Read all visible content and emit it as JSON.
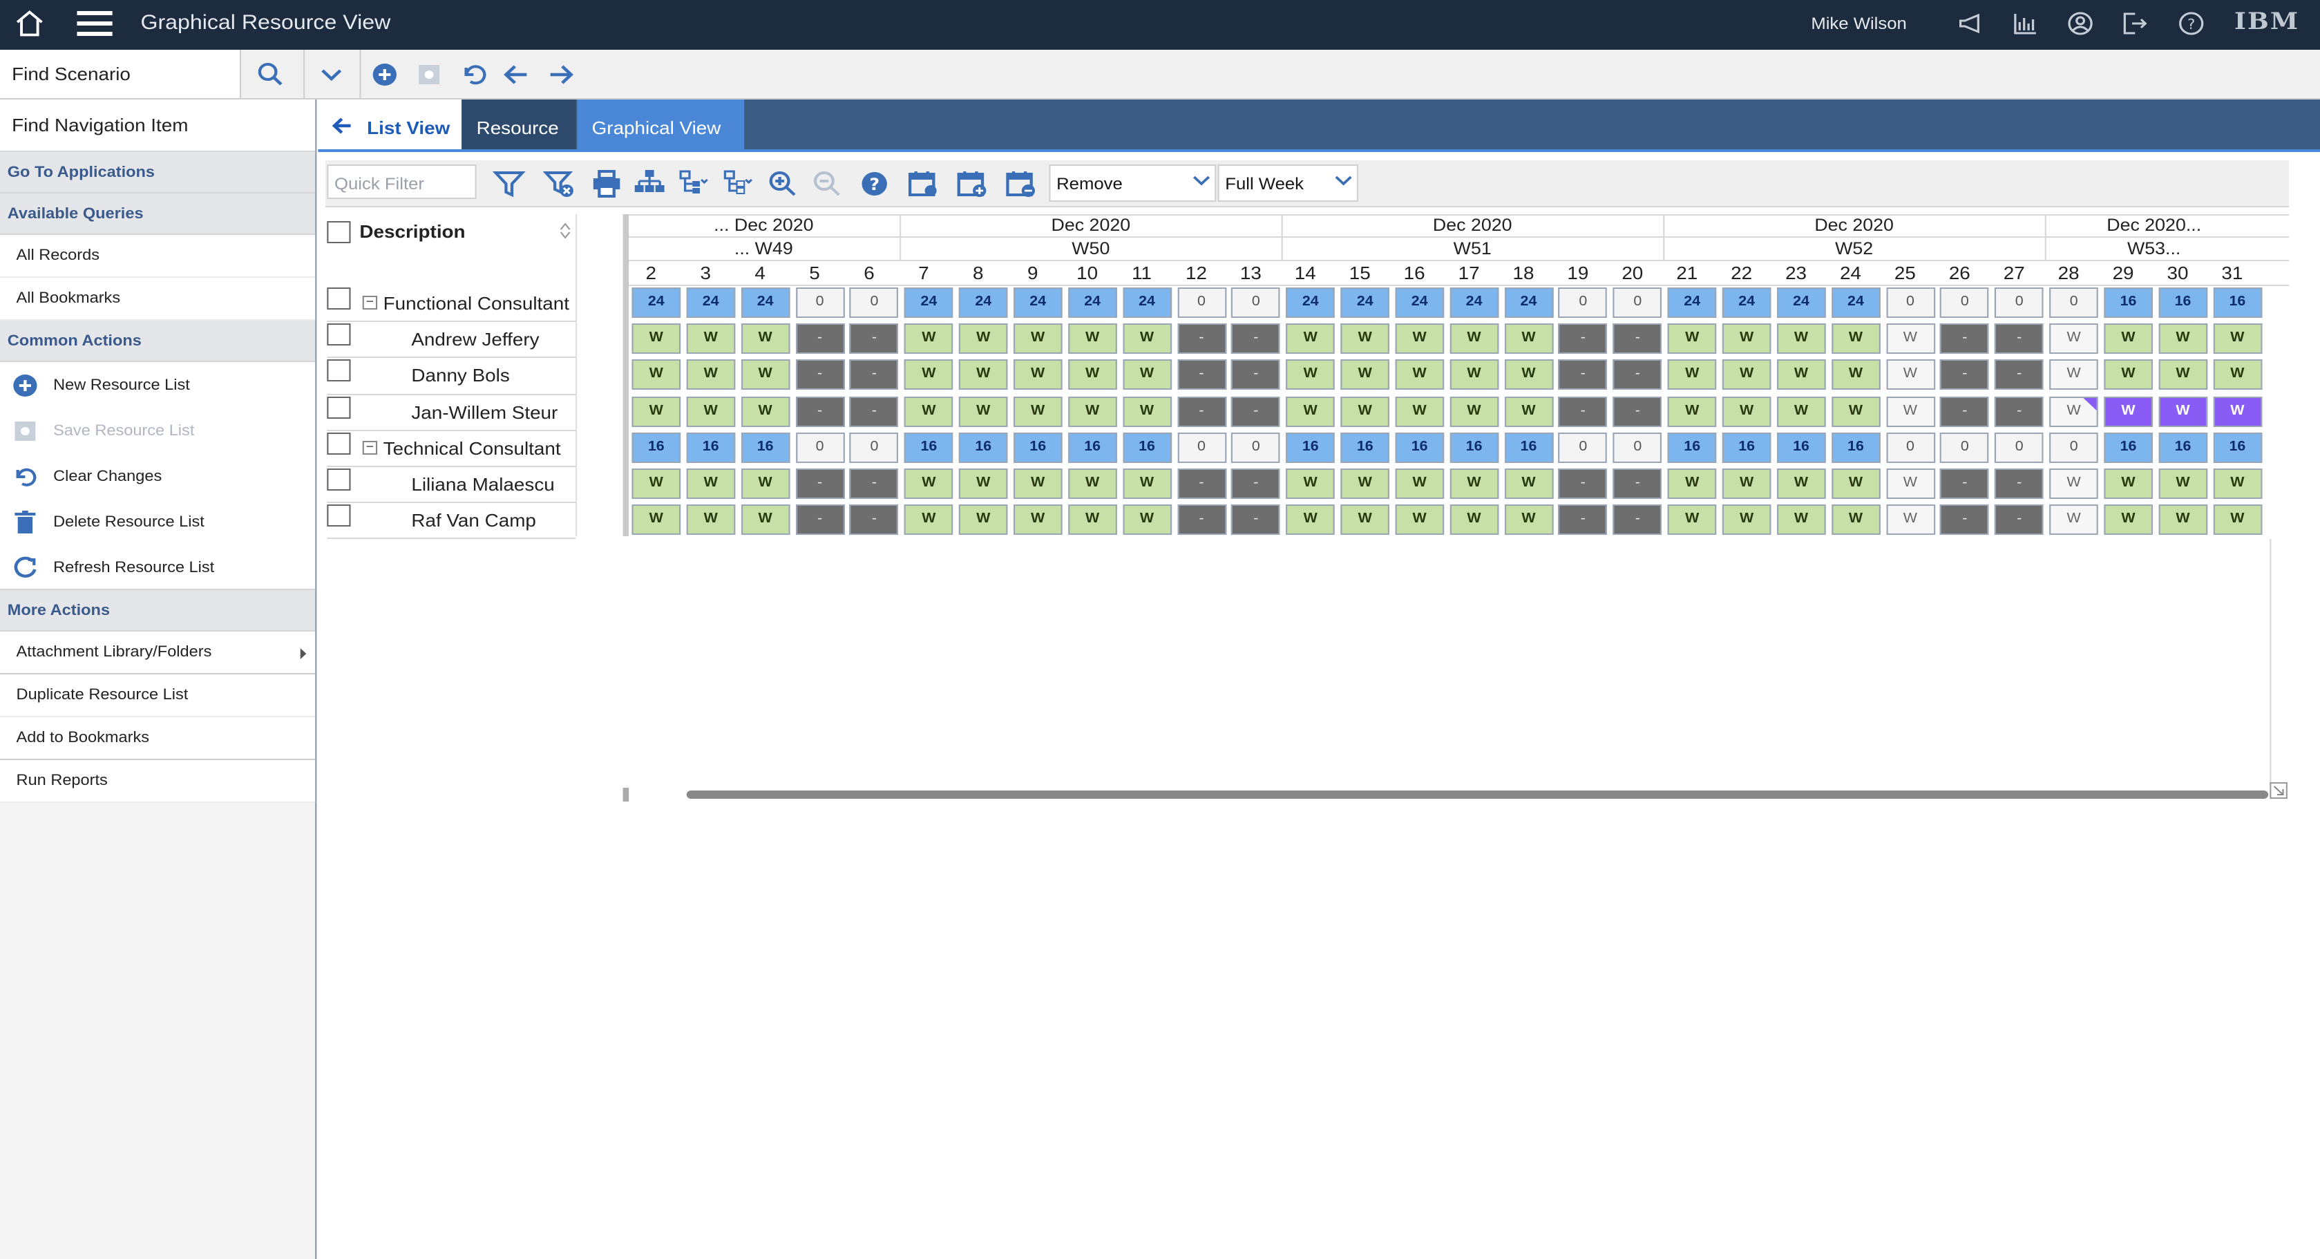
{
  "header": {
    "app_title": "Graphical Resource View",
    "user": "Mike Wilson",
    "brand": "IBM"
  },
  "toolbar": {
    "find_scenario": "Find Scenario"
  },
  "nav": {
    "find_item": "Find Navigation Item",
    "go_to_applications": "Go To Applications",
    "available_queries": "Available Queries",
    "queries": [
      "All Records",
      "All Bookmarks"
    ],
    "common_actions": "Common Actions",
    "actions": [
      {
        "label": "New Resource List",
        "icon": "plus-circle-icon",
        "enabled": true
      },
      {
        "label": "Save Resource List",
        "icon": "save-icon",
        "enabled": false
      },
      {
        "label": "Clear Changes",
        "icon": "undo-icon",
        "enabled": true
      },
      {
        "label": "Delete Resource List",
        "icon": "trash-icon",
        "enabled": true
      },
      {
        "label": "Refresh Resource List",
        "icon": "refresh-icon",
        "enabled": true
      }
    ],
    "more_actions": "More Actions",
    "more": [
      "Attachment Library/Folders",
      "Duplicate Resource List",
      "Add to Bookmarks",
      "Run Reports"
    ]
  },
  "tabs": {
    "list_view": "List View",
    "resource": "Resource",
    "graphical_view": "Graphical View"
  },
  "grid_toolbar": {
    "quick_filter_placeholder": "Quick Filter",
    "action_select": "Remove",
    "range_select": "Full Week"
  },
  "grid": {
    "description_header": "Description",
    "months": [
      "... Dec 2020",
      "Dec 2020",
      "Dec 2020",
      "Dec 2020",
      "Dec 2020..."
    ],
    "weeks": [
      "... W49",
      "W50",
      "W51",
      "W52",
      "W53..."
    ],
    "days": [
      "2",
      "3",
      "4",
      "5",
      "6",
      "7",
      "8",
      "9",
      "10",
      "11",
      "12",
      "13",
      "14",
      "15",
      "16",
      "17",
      "18",
      "19",
      "20",
      "21",
      "22",
      "23",
      "24",
      "25",
      "26",
      "27",
      "28",
      "29",
      "30",
      "31"
    ],
    "rows": [
      {
        "label": "Functional Consultant",
        "group": true,
        "cells": [
          "24",
          "24",
          "24",
          "0",
          "0",
          "24",
          "24",
          "24",
          "24",
          "24",
          "0",
          "0",
          "24",
          "24",
          "24",
          "24",
          "24",
          "0",
          "0",
          "24",
          "24",
          "24",
          "24",
          "0",
          "0",
          "0",
          "0",
          "16",
          "16",
          "16"
        ]
      },
      {
        "label": "Andrew Jeffery",
        "group": false,
        "cells": [
          "W",
          "W",
          "W",
          "-",
          "-",
          "W",
          "W",
          "W",
          "W",
          "W",
          "-",
          "-",
          "W",
          "W",
          "W",
          "W",
          "W",
          "-",
          "-",
          "W",
          "W",
          "W",
          "W",
          "W",
          "-",
          "-",
          "W",
          "W",
          "W",
          "W"
        ]
      },
      {
        "label": "Danny Bols",
        "group": false,
        "cells": [
          "W",
          "W",
          "W",
          "-",
          "-",
          "W",
          "W",
          "W",
          "W",
          "W",
          "-",
          "-",
          "W",
          "W",
          "W",
          "W",
          "W",
          "-",
          "-",
          "W",
          "W",
          "W",
          "W",
          "W",
          "-",
          "-",
          "W",
          "W",
          "W",
          "W"
        ]
      },
      {
        "label": "Jan-Willem Steur",
        "group": false,
        "cells": [
          "W",
          "W",
          "W",
          "-",
          "-",
          "W",
          "W",
          "W",
          "W",
          "W",
          "-",
          "-",
          "W",
          "W",
          "W",
          "W",
          "W",
          "-",
          "-",
          "W",
          "W",
          "W",
          "W",
          "W",
          "-",
          "-",
          "W",
          "W",
          "W",
          "W"
        ]
      },
      {
        "label": "Technical Consultant",
        "group": true,
        "cells": [
          "16",
          "16",
          "16",
          "0",
          "0",
          "16",
          "16",
          "16",
          "16",
          "16",
          "0",
          "0",
          "16",
          "16",
          "16",
          "16",
          "16",
          "0",
          "0",
          "16",
          "16",
          "16",
          "16",
          "0",
          "0",
          "0",
          "0",
          "16",
          "16",
          "16"
        ]
      },
      {
        "label": "Liliana Malaescu",
        "group": false,
        "cells": [
          "W",
          "W",
          "W",
          "-",
          "-",
          "W",
          "W",
          "W",
          "W",
          "W",
          "-",
          "-",
          "W",
          "W",
          "W",
          "W",
          "W",
          "-",
          "-",
          "W",
          "W",
          "W",
          "W",
          "W",
          "-",
          "-",
          "W",
          "W",
          "W",
          "W"
        ]
      },
      {
        "label": "Raf Van Camp",
        "group": false,
        "cells": [
          "W",
          "W",
          "W",
          "-",
          "-",
          "W",
          "W",
          "W",
          "W",
          "W",
          "-",
          "-",
          "W",
          "W",
          "W",
          "W",
          "W",
          "-",
          "-",
          "W",
          "W",
          "W",
          "W",
          "W",
          "-",
          "-",
          "W",
          "W",
          "W",
          "W"
        ]
      }
    ]
  },
  "colors": {
    "header_bg": "#1c2b3e",
    "tab_active": "#4a87d6",
    "hours_cell": "#7db6ee",
    "work_cell": "#c6e0a7",
    "nonwork_cell": "#6e6e6e",
    "highlight_cell": "#8a5cf6"
  }
}
